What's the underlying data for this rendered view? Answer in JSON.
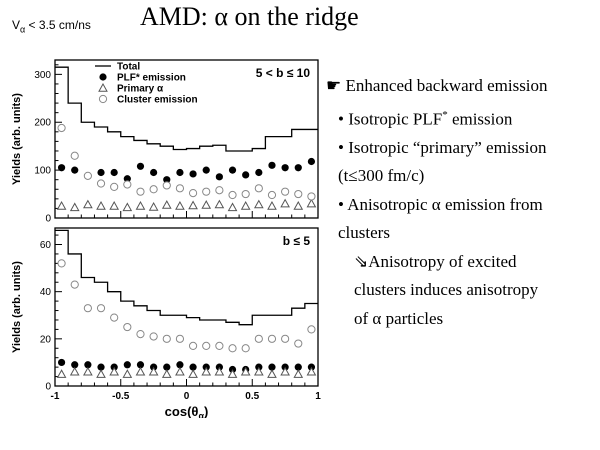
{
  "header": {
    "note_v": "V",
    "note_sub": "α",
    "note_rest": " < 3.5 cm/ns",
    "title": "AMD: α on the ridge"
  },
  "bullets": {
    "b1": "☛ Enhanced backward emission",
    "b2": "• Isotropic PLF",
    "b2_sup": "*",
    "b2_tail": " emission",
    "b3": "• Isotropic “primary” emission",
    "b4": "(t≤300 fm/c)",
    "b5": "• Anisotropic α emission from",
    "b6": "clusters",
    "b7": "⇘Anisotropy of excited",
    "b8": "clusters induces anisotropy",
    "b9": "of α particles"
  },
  "chart_data": [
    {
      "type": "line",
      "panel_label": "5 < b ≤ 10",
      "ylabel": "Yields (arb. units)",
      "ylim": [
        0,
        330
      ],
      "yticks": [
        0,
        100,
        200,
        300
      ],
      "xlim": [
        -1,
        1
      ],
      "x": [
        -0.95,
        -0.85,
        -0.75,
        -0.65,
        -0.55,
        -0.45,
        -0.35,
        -0.25,
        -0.15,
        -0.05,
        0.05,
        0.15,
        0.25,
        0.35,
        0.45,
        0.55,
        0.65,
        0.75,
        0.85,
        0.95
      ],
      "series": [
        {
          "name": "Total",
          "style": "step",
          "color": "#000000",
          "values": [
            315,
            240,
            200,
            190,
            180,
            170,
            162,
            155,
            150,
            143,
            145,
            150,
            152,
            140,
            140,
            145,
            170,
            170,
            185,
            185
          ]
        },
        {
          "name": "PLF* emission",
          "style": "filled-circle",
          "color": "#000000",
          "values": [
            105,
            100,
            88,
            95,
            95,
            82,
            108,
            95,
            80,
            95,
            92,
            100,
            86,
            100,
            90,
            95,
            110,
            105,
            105,
            118
          ]
        },
        {
          "name": "Primary α",
          "style": "open-triangle",
          "color": "#555555",
          "values": [
            25,
            22,
            28,
            25,
            25,
            22,
            25,
            23,
            27,
            25,
            26,
            27,
            28,
            22,
            25,
            28,
            25,
            30,
            25,
            30
          ]
        },
        {
          "name": "Cluster emission",
          "style": "open-circle",
          "color": "#888888",
          "values": [
            188,
            130,
            88,
            72,
            65,
            70,
            55,
            60,
            68,
            62,
            52,
            55,
            58,
            48,
            50,
            62,
            48,
            55,
            50,
            45
          ]
        }
      ]
    },
    {
      "type": "line",
      "panel_label": "b ≤ 5",
      "ylabel": "Yields (arb. units)",
      "xlabel": "cos(θ",
      "xlabel_sub": "α",
      "xlabel_tail": ")",
      "ylim": [
        0,
        67
      ],
      "yticks": [
        0,
        20,
        40,
        60
      ],
      "xlim": [
        -1,
        1
      ],
      "xticks": [
        -1,
        -0.5,
        0,
        0.5,
        1
      ],
      "xtick_labels": [
        "-1",
        "-0.5",
        "0",
        "0.5",
        "1"
      ],
      "x": [
        -0.95,
        -0.85,
        -0.75,
        -0.65,
        -0.55,
        -0.45,
        -0.35,
        -0.25,
        -0.15,
        -0.05,
        0.05,
        0.15,
        0.25,
        0.35,
        0.45,
        0.55,
        0.65,
        0.75,
        0.85,
        0.95
      ],
      "series": [
        {
          "name": "Total",
          "style": "step",
          "color": "#000000",
          "values": [
            66,
            56,
            46,
            44,
            40,
            36,
            34,
            32,
            30,
            30,
            29,
            28,
            28,
            27,
            26,
            30,
            30,
            30,
            33,
            35
          ]
        },
        {
          "name": "PLF* emission",
          "style": "filled-circle",
          "color": "#000000",
          "values": [
            10,
            9,
            9,
            8,
            8,
            9,
            9,
            8,
            8,
            9,
            8,
            8,
            8,
            7,
            7,
            8,
            8,
            8,
            8,
            8
          ]
        },
        {
          "name": "Primary α",
          "style": "open-triangle",
          "color": "#555555",
          "values": [
            5,
            6,
            6,
            5,
            6,
            5,
            6,
            6,
            5,
            6,
            5,
            6,
            6,
            5,
            6,
            6,
            5,
            6,
            5,
            6
          ]
        },
        {
          "name": "Cluster emission",
          "style": "open-circle",
          "color": "#888888",
          "values": [
            52,
            43,
            33,
            33,
            29,
            25,
            22,
            21,
            20,
            20,
            17,
            17,
            17,
            16,
            16,
            20,
            20,
            20,
            18,
            24
          ]
        }
      ]
    }
  ]
}
